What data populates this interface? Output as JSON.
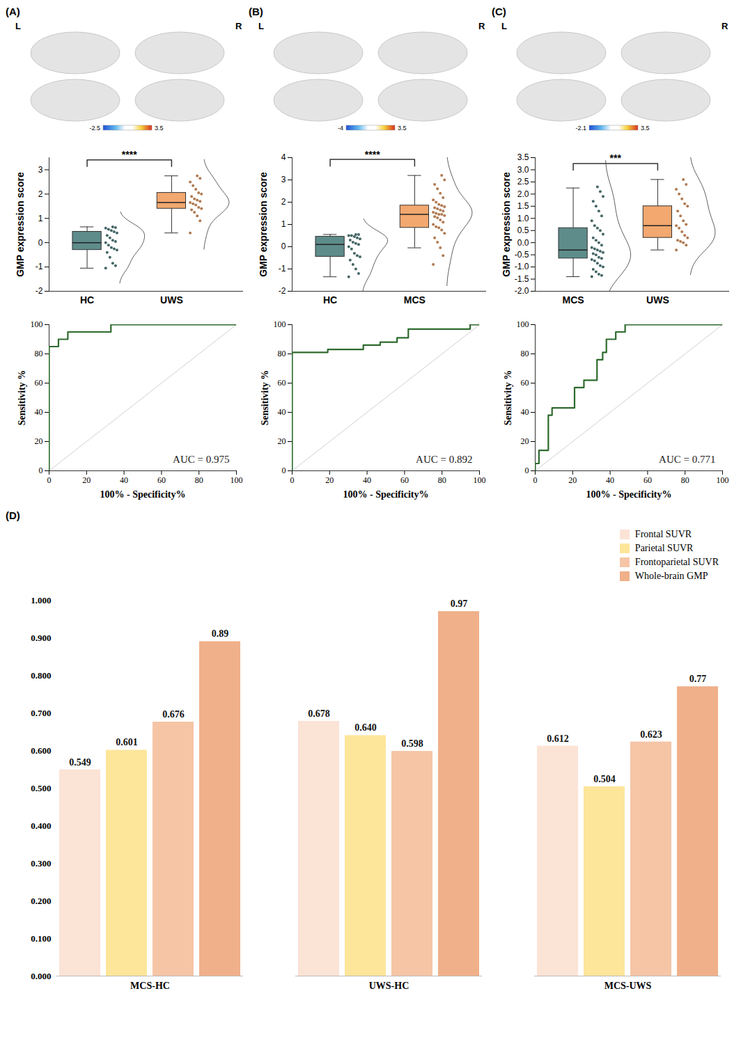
{
  "chart_data": [
    {
      "type": "box",
      "panel": "(A)",
      "hemisphere_labels": [
        "L",
        "R"
      ],
      "colorbar": {
        "range": [
          -2.5,
          3.5
        ]
      },
      "categories": [
        "HC",
        "UWS"
      ],
      "colors": [
        "#5e8c8b",
        "#f2a86f"
      ],
      "box": [
        {
          "min": -1.05,
          "q1": -0.3,
          "median": 0.0,
          "q3": 0.45,
          "max": 0.65
        },
        {
          "min": 0.4,
          "q1": 1.4,
          "median": 1.65,
          "q3": 2.05,
          "max": 2.75
        }
      ],
      "points": [
        [
          -1.05,
          -0.95,
          -0.85,
          -0.6,
          -0.4,
          -0.3,
          -0.25,
          -0.2,
          -0.1,
          0.0,
          0.05,
          0.1,
          0.2,
          0.3,
          0.4,
          0.45,
          0.5,
          0.55,
          0.6,
          0.62,
          0.65
        ],
        [
          0.4,
          0.9,
          1.1,
          1.25,
          1.35,
          1.4,
          1.45,
          1.55,
          1.6,
          1.65,
          1.7,
          1.75,
          1.8,
          1.9,
          2.0,
          2.05,
          2.2,
          2.35,
          2.5,
          2.65,
          2.75
        ]
      ],
      "ylabel": "GMP expression score",
      "ylim": [
        -2,
        3.5
      ],
      "yticks": [
        -2,
        -1,
        0,
        1,
        2,
        3
      ],
      "significance": "****"
    },
    {
      "type": "line",
      "panel": "(A)",
      "x": [
        0,
        0,
        5,
        5,
        10,
        10,
        33,
        33,
        100
      ],
      "values": [
        0,
        85,
        85,
        90,
        90,
        95,
        95,
        100,
        100
      ],
      "color": "#2e6b2e",
      "xlabel": "100% - Specificity%",
      "ylabel": "Sensitivity %",
      "xlim": [
        0,
        100
      ],
      "ylim": [
        0,
        100
      ],
      "xticks": [
        0,
        20,
        40,
        60,
        80,
        100
      ],
      "yticks": [
        0,
        20,
        40,
        60,
        80,
        100
      ],
      "annotation": "AUC = 0.975"
    },
    {
      "type": "box",
      "panel": "(B)",
      "hemisphere_labels": [
        "L",
        "R"
      ],
      "colorbar": {
        "range": [
          -4,
          3.5
        ]
      },
      "categories": [
        "HC",
        "MCS"
      ],
      "colors": [
        "#5e8c8b",
        "#f2a86f"
      ],
      "box": [
        {
          "min": -1.35,
          "q1": -0.45,
          "median": 0.1,
          "q3": 0.45,
          "max": 0.55
        },
        {
          "min": -0.05,
          "q1": 0.85,
          "median": 1.45,
          "q3": 1.85,
          "max": 3.2
        }
      ],
      "points": [
        [
          -1.35,
          -1.2,
          -1.0,
          -0.8,
          -0.6,
          -0.45,
          -0.4,
          -0.3,
          -0.1,
          0.0,
          0.1,
          0.15,
          0.2,
          0.3,
          0.35,
          0.4,
          0.45,
          0.5,
          0.5,
          0.55,
          0.55
        ],
        [
          -0.8,
          -0.4,
          -0.05,
          0.2,
          0.4,
          0.6,
          0.75,
          0.85,
          0.9,
          1.0,
          1.1,
          1.2,
          1.3,
          1.35,
          1.4,
          1.45,
          1.45,
          1.5,
          1.55,
          1.6,
          1.65,
          1.7,
          1.75,
          1.8,
          1.85,
          1.9,
          2.0,
          2.1,
          2.2,
          2.4,
          2.6,
          2.8,
          3.0,
          3.2
        ]
      ],
      "ylabel": "GMP expression score",
      "ylim": [
        -2,
        4
      ],
      "yticks": [
        -2,
        -1,
        0,
        1,
        2,
        3,
        4
      ],
      "significance": "****"
    },
    {
      "type": "line",
      "panel": "(B)",
      "x": [
        0,
        0,
        19,
        19,
        38,
        38,
        47,
        47,
        56,
        56,
        62,
        62,
        95,
        95,
        100
      ],
      "values": [
        0,
        81,
        81,
        83,
        83,
        86,
        86,
        88,
        88,
        91,
        91,
        97,
        97,
        100,
        100
      ],
      "color": "#2e6b2e",
      "xlabel": "100% - Specificity%",
      "ylabel": "Sensitivity %",
      "xlim": [
        0,
        100
      ],
      "ylim": [
        0,
        100
      ],
      "xticks": [
        0,
        20,
        40,
        60,
        80,
        100
      ],
      "yticks": [
        0,
        20,
        40,
        60,
        80,
        100
      ],
      "annotation": "AUC = 0.892"
    },
    {
      "type": "box",
      "panel": "(C)",
      "hemisphere_labels": [
        "L",
        "R"
      ],
      "colorbar": {
        "range": [
          -2.1,
          3.5
        ]
      },
      "categories": [
        "MCS",
        "UWS"
      ],
      "colors": [
        "#5e8c8b",
        "#f2a86f"
      ],
      "box": [
        {
          "min": -1.4,
          "q1": -0.65,
          "median": -0.3,
          "q3": 0.6,
          "max": 2.25
        },
        {
          "min": -0.3,
          "q1": 0.2,
          "median": 0.7,
          "q3": 1.5,
          "max": 2.6
        }
      ],
      "points": [
        [
          -1.4,
          -1.35,
          -1.3,
          -1.2,
          -1.1,
          -1.0,
          -0.95,
          -0.85,
          -0.75,
          -0.7,
          -0.65,
          -0.6,
          -0.5,
          -0.45,
          -0.4,
          -0.35,
          -0.3,
          -0.25,
          -0.2,
          -0.1,
          0.0,
          0.1,
          0.2,
          0.35,
          0.5,
          0.6,
          0.7,
          0.9,
          1.1,
          1.3,
          1.5,
          1.7,
          1.9,
          2.1,
          2.3
        ],
        [
          -0.3,
          -0.1,
          0.0,
          0.05,
          0.1,
          0.2,
          0.3,
          0.45,
          0.6,
          0.7,
          0.75,
          0.9,
          1.1,
          1.3,
          1.5,
          1.6,
          1.8,
          2.0,
          2.2,
          2.4,
          2.6
        ]
      ],
      "ylabel": "GMP expression score",
      "ylim": [
        -2,
        3.5
      ],
      "yticks": [
        {
          "value": -2,
          "label": "-2.0"
        },
        {
          "value": -1.5,
          "label": "-1.5"
        },
        {
          "value": -1,
          "label": "-1.0"
        },
        {
          "value": -0.5,
          "label": "-0.5"
        },
        {
          "value": 0,
          "label": "0.0"
        },
        {
          "value": 0.5,
          "label": "0.5"
        },
        {
          "value": 1,
          "label": "1.0"
        },
        {
          "value": 1.5,
          "label": "1.5"
        },
        {
          "value": 2,
          "label": "2.0"
        },
        {
          "value": 2.5,
          "label": "2.5"
        },
        {
          "value": 3,
          "label": "3.0"
        },
        {
          "value": 3.5,
          "label": "3.5"
        }
      ],
      "significance": "***"
    },
    {
      "type": "line",
      "panel": "(C)",
      "x": [
        0,
        0,
        2,
        2,
        7,
        7,
        9,
        9,
        21,
        21,
        26,
        26,
        33,
        33,
        36,
        36,
        38,
        38,
        43,
        43,
        48,
        48,
        100
      ],
      "values": [
        0,
        5,
        5,
        14,
        14,
        38,
        38,
        43,
        43,
        57,
        57,
        62,
        62,
        76,
        76,
        81,
        81,
        90,
        90,
        95,
        95,
        100,
        100
      ],
      "color": "#2e6b2e",
      "xlabel": "100% - Specificity%",
      "ylabel": "Sensitivity %",
      "xlim": [
        0,
        100
      ],
      "ylim": [
        0,
        100
      ],
      "xticks": [
        0,
        20,
        40,
        60,
        80,
        100
      ],
      "yticks": [
        0,
        20,
        40,
        60,
        80,
        100
      ],
      "annotation": "AUC = 0.771"
    },
    {
      "type": "bar",
      "panel": "(D)",
      "categories": [
        "MCS-HC",
        "UWS-HC",
        "MCS-UWS"
      ],
      "series": [
        {
          "name": "Frontal SUVR",
          "color": "#fbe3d6",
          "values": [
            0.549,
            0.678,
            0.612
          ],
          "value_labels": [
            "0.549",
            "0.678",
            "0.612"
          ]
        },
        {
          "name": "Parietal SUVR",
          "color": "#fde59a",
          "values": [
            0.601,
            0.64,
            0.504
          ],
          "value_labels": [
            "0.601",
            "0.640",
            "0.504"
          ]
        },
        {
          "name": "Frontoparietal SUVR",
          "color": "#f5c5a6",
          "values": [
            0.676,
            0.598,
            0.623
          ],
          "value_labels": [
            "0.676",
            "0.598",
            "0.623"
          ]
        },
        {
          "name": "Whole-brain GMP",
          "color": "#f0b08a",
          "values": [
            0.89,
            0.97,
            0.77
          ],
          "value_labels": [
            "0.89",
            "0.97",
            "0.77"
          ]
        }
      ],
      "ylim": [
        0,
        1
      ],
      "yticks": [
        {
          "value": 0,
          "label": "0.000"
        },
        {
          "value": 0.1,
          "label": "0.100"
        },
        {
          "value": 0.2,
          "label": "0.200"
        },
        {
          "value": 0.3,
          "label": "0.300"
        },
        {
          "value": 0.4,
          "label": "0.400"
        },
        {
          "value": 0.5,
          "label": "0.500"
        },
        {
          "value": 0.6,
          "label": "0.600"
        },
        {
          "value": 0.7,
          "label": "0.700"
        },
        {
          "value": 0.8,
          "label": "0.800"
        },
        {
          "value": 0.9,
          "label": "0.900"
        },
        {
          "value": 1,
          "label": "1.000"
        }
      ],
      "data_labels": true,
      "legend": "top-right"
    }
  ]
}
